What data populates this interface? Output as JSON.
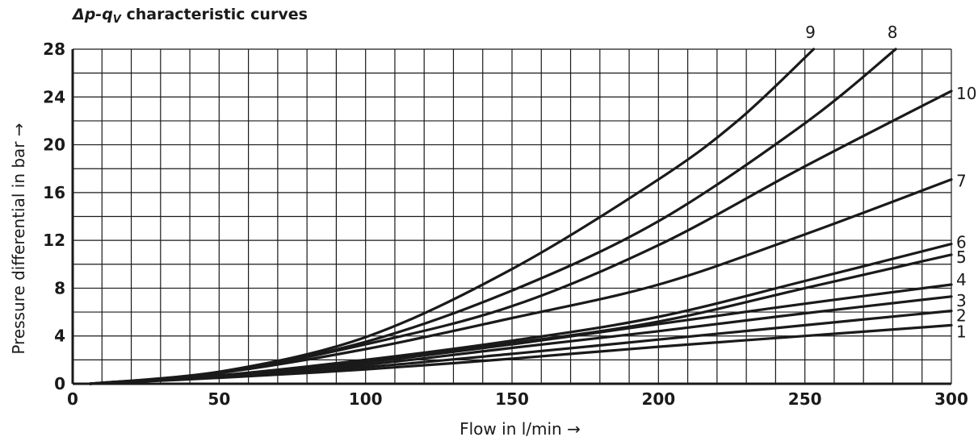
{
  "chart_data": {
    "type": "line",
    "title": "Δp-qV characteristic curves",
    "title_parts": {
      "delta_p": "Δp-q",
      "subscript": "V",
      "rest": " characteristic curves"
    },
    "xlabel": "Flow in l/min  →",
    "ylabel": "Pressure differential in bar  →",
    "xlim": [
      0,
      300
    ],
    "ylim": [
      0,
      28
    ],
    "x_ticks": [
      0,
      50,
      100,
      150,
      200,
      250,
      300
    ],
    "x_tick_labels": [
      "0",
      "50",
      "100",
      "150",
      "200",
      "250",
      "300"
    ],
    "y_ticks": [
      0,
      4,
      8,
      12,
      16,
      20,
      24,
      28
    ],
    "y_tick_labels": [
      "0",
      "4",
      "8",
      "12",
      "16",
      "20",
      "24",
      "28"
    ],
    "x_minor_step": 10,
    "y_minor_step": 2,
    "grid": true,
    "series": [
      {
        "name": "1",
        "x": [
          6,
          50,
          100,
          150,
          200,
          250,
          300
        ],
        "y": [
          0,
          0.5,
          1.2,
          2.1,
          3.1,
          4.0,
          4.9
        ]
      },
      {
        "name": "2",
        "x": [
          6,
          50,
          100,
          150,
          200,
          250,
          300
        ],
        "y": [
          0,
          0.6,
          1.4,
          2.5,
          3.7,
          4.9,
          6.1
        ]
      },
      {
        "name": "3",
        "x": [
          6,
          50,
          100,
          150,
          200,
          250,
          300
        ],
        "y": [
          0,
          0.6,
          1.6,
          3.0,
          4.4,
          5.9,
          7.3
        ]
      },
      {
        "name": "4",
        "x": [
          6,
          50,
          100,
          150,
          200,
          250,
          300
        ],
        "y": [
          0,
          0.6,
          1.8,
          3.3,
          5.0,
          6.7,
          8.3
        ]
      },
      {
        "name": "5",
        "x": [
          6,
          50,
          100,
          150,
          200,
          250,
          300
        ],
        "y": [
          0,
          0.6,
          1.9,
          3.4,
          5.2,
          8.0,
          10.8
        ]
      },
      {
        "name": "6",
        "x": [
          6,
          50,
          100,
          150,
          200,
          250,
          300
        ],
        "y": [
          0,
          0.7,
          2.0,
          3.6,
          5.6,
          8.6,
          11.7
        ]
      },
      {
        "name": "7",
        "x": [
          6,
          50,
          100,
          150,
          200,
          250,
          300
        ],
        "y": [
          0,
          0.9,
          2.9,
          5.5,
          8.3,
          12.5,
          17.1
        ]
      },
      {
        "name": "10",
        "x": [
          6,
          50,
          100,
          150,
          200,
          250,
          300
        ],
        "y": [
          0,
          0.9,
          3.3,
          6.5,
          11.6,
          18.2,
          24.5
        ]
      },
      {
        "name": "8",
        "x": [
          6,
          50,
          100,
          150,
          200,
          250,
          281
        ],
        "y": [
          0,
          1.0,
          3.5,
          7.8,
          13.6,
          21.8,
          28.0
        ]
      },
      {
        "name": "9",
        "x": [
          6,
          50,
          100,
          150,
          200,
          227,
          253
        ],
        "y": [
          0,
          1.0,
          3.9,
          9.6,
          17.1,
          22.0,
          28.0
        ]
      }
    ]
  },
  "colors": {
    "line": "#1a1a1a",
    "background": "#ffffff"
  }
}
